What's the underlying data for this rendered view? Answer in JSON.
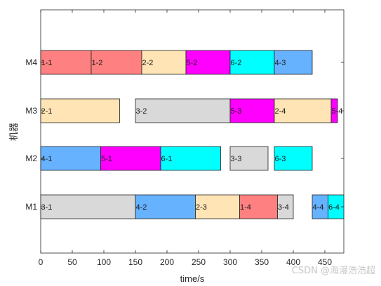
{
  "chart_data": {
    "type": "gantt",
    "title": "",
    "xlabel": "time/s",
    "ylabel": "机器",
    "xlim": [
      0,
      480
    ],
    "xticks": [
      0,
      50,
      100,
      150,
      200,
      250,
      300,
      350,
      400,
      450
    ],
    "grid": false,
    "machines": [
      "M1",
      "M2",
      "M3",
      "M4"
    ],
    "operation_colors": {
      "1": "#ff8080",
      "2": "#ffe4b5",
      "3": "#d9d9d9",
      "4": "#66b2ff",
      "5": "#ff00ff",
      "6": "#00ffff"
    },
    "tasks": [
      {
        "machine": "M1",
        "label": "3-1",
        "job": 3,
        "start": 0,
        "end": 150
      },
      {
        "machine": "M1",
        "label": "4-2",
        "job": 4,
        "start": 150,
        "end": 245
      },
      {
        "machine": "M1",
        "label": "2-3",
        "job": 2,
        "start": 245,
        "end": 315
      },
      {
        "machine": "M1",
        "label": "1-4",
        "job": 1,
        "start": 315,
        "end": 375
      },
      {
        "machine": "M1",
        "label": "3-4",
        "job": 3,
        "start": 375,
        "end": 400
      },
      {
        "machine": "M1",
        "label": "4-4",
        "job": 4,
        "start": 430,
        "end": 455
      },
      {
        "machine": "M1",
        "label": "6-4",
        "job": 6,
        "start": 455,
        "end": 480
      },
      {
        "machine": "M2",
        "label": "4-1",
        "job": 4,
        "start": 0,
        "end": 95
      },
      {
        "machine": "M2",
        "label": "5-1",
        "job": 5,
        "start": 95,
        "end": 190
      },
      {
        "machine": "M2",
        "label": "6-1",
        "job": 6,
        "start": 190,
        "end": 285
      },
      {
        "machine": "M2",
        "label": "3-3",
        "job": 3,
        "start": 300,
        "end": 360
      },
      {
        "machine": "M2",
        "label": "6-3",
        "job": 6,
        "start": 370,
        "end": 430
      },
      {
        "machine": "M3",
        "label": "2-1",
        "job": 2,
        "start": 0,
        "end": 125
      },
      {
        "machine": "M3",
        "label": "3-2",
        "job": 3,
        "start": 150,
        "end": 300
      },
      {
        "machine": "M3",
        "label": "5-3",
        "job": 5,
        "start": 300,
        "end": 370
      },
      {
        "machine": "M3",
        "label": "2-4",
        "job": 2,
        "start": 370,
        "end": 460
      },
      {
        "machine": "M3",
        "label": "5-4",
        "job": 5,
        "start": 460,
        "end": 470
      },
      {
        "machine": "M4",
        "label": "1-1",
        "job": 1,
        "start": 0,
        "end": 80
      },
      {
        "machine": "M4",
        "label": "1-2",
        "job": 1,
        "start": 80,
        "end": 160
      },
      {
        "machine": "M4",
        "label": "2-2",
        "job": 2,
        "start": 160,
        "end": 230
      },
      {
        "machine": "M4",
        "label": "5-2",
        "job": 5,
        "start": 230,
        "end": 300
      },
      {
        "machine": "M4",
        "label": "6-2",
        "job": 6,
        "start": 300,
        "end": 370
      },
      {
        "machine": "M4",
        "label": "4-3",
        "job": 4,
        "start": 370,
        "end": 430
      }
    ]
  },
  "watermark": "CSDN @海漫浩浩超"
}
